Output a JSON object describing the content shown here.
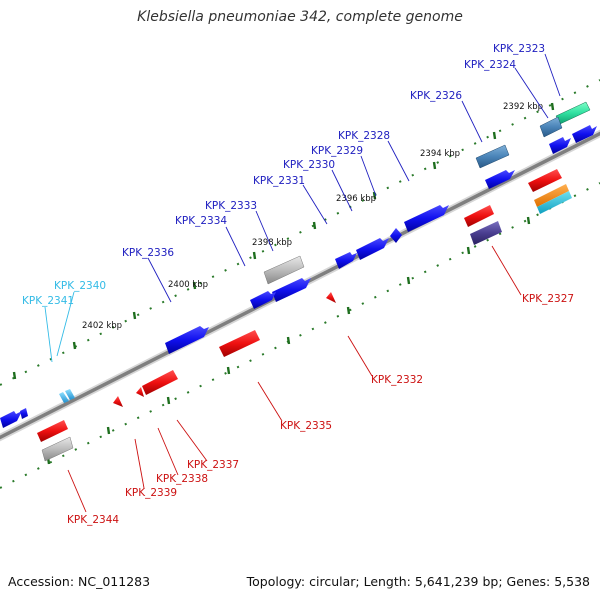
{
  "title": "Klebsiella pneumoniae 342, complete genome",
  "footer": {
    "accession": "Accession: NC_011283",
    "summary": "Topology: circular; Length: 5,641,239 bp; Genes: 5,538"
  },
  "kbp_labels": [
    {
      "id": "2392",
      "text": "2392 kbp"
    },
    {
      "id": "2394",
      "text": "2394 kbp"
    },
    {
      "id": "2396",
      "text": "2396 kbp"
    },
    {
      "id": "2398",
      "text": "2398 kbp"
    },
    {
      "id": "2400",
      "text": "2400 kbp"
    },
    {
      "id": "2402",
      "text": "2402 kbp"
    }
  ],
  "genes_top": [
    {
      "id": "2323",
      "label": "KPK_2323",
      "color": "#2020c0"
    },
    {
      "id": "2324",
      "label": "KPK_2324",
      "color": "#2020c0"
    },
    {
      "id": "2326",
      "label": "KPK_2326",
      "color": "#2020c0"
    },
    {
      "id": "2328",
      "label": "KPK_2328",
      "color": "#2020c0"
    },
    {
      "id": "2329",
      "label": "KPK_2329",
      "color": "#2020c0"
    },
    {
      "id": "2330",
      "label": "KPK_2330",
      "color": "#2020c0"
    },
    {
      "id": "2331",
      "label": "KPK_2331",
      "color": "#2020c0"
    },
    {
      "id": "2333",
      "label": "KPK_2333",
      "color": "#2020c0"
    },
    {
      "id": "2334",
      "label": "KPK_2334",
      "color": "#2020c0"
    },
    {
      "id": "2336",
      "label": "KPK_2336",
      "color": "#2020c0"
    },
    {
      "id": "2340",
      "label": "KPK_2340",
      "color": "#33bbe6"
    },
    {
      "id": "2341",
      "label": "KPK_2341",
      "color": "#33bbe6"
    }
  ],
  "genes_bottom": [
    {
      "id": "2327",
      "label": "KPK_2327",
      "color": "#cc1111"
    },
    {
      "id": "2332",
      "label": "KPK_2332",
      "color": "#cc1111"
    },
    {
      "id": "2335",
      "label": "KPK_2335",
      "color": "#cc1111"
    },
    {
      "id": "2337",
      "label": "KPK_2337",
      "color": "#cc1111"
    },
    {
      "id": "2338",
      "label": "KPK_2338",
      "color": "#cc1111"
    },
    {
      "id": "2339",
      "label": "KPK_2339",
      "color": "#cc1111"
    },
    {
      "id": "2344",
      "label": "KPK_2344",
      "color": "#cc1111"
    }
  ],
  "colors": {
    "backbone": "#888888",
    "tick": "#2a7a2a",
    "forward_cds": "#0000ee",
    "reverse_cds": "#ee0000",
    "trna": "#33bbe6",
    "other": "#aaaaaa"
  }
}
